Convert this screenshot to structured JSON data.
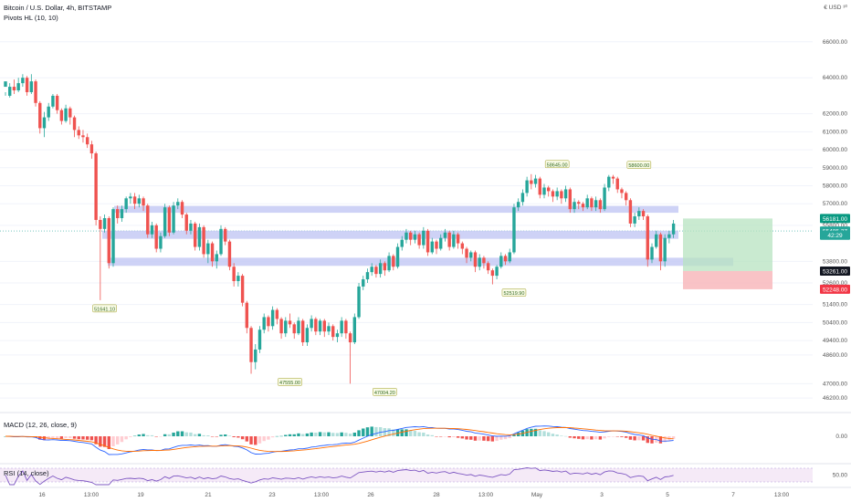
{
  "header": {
    "title": "Bitcoin / U.S. Dollar, 4h, BITSTAMP",
    "indicator": "Pivots HL (10, 10)",
    "currency": "€ USD ³⁰"
  },
  "indicators": {
    "macd_label": "MACD (12, 26, close, 9)",
    "rsi_label": "RSI (14, close)"
  },
  "chart_data": {
    "type": "candlestick",
    "title": "Bitcoin / U.S. Dollar, 4h, BITSTAMP",
    "y_ticks": [
      66000,
      64000,
      62000,
      61000,
      60000,
      59000,
      58000,
      57000,
      55800,
      53800,
      52600,
      51400,
      50400,
      49400,
      48600,
      47000,
      46200
    ],
    "y_tick_labels": [
      "66000.00",
      "64000.00",
      "62000.00",
      "61000.00",
      "60000.00",
      "59000.00",
      "58000.00",
      "57000.00",
      "55800.00",
      "53800.00",
      "52600.00",
      "51400.00",
      "50400.00",
      "49400.00",
      "48600.00",
      "47000.00",
      "46200.00"
    ],
    "y_range": [
      45600,
      66800
    ],
    "x_labels": [
      "16",
      "13:00",
      "19",
      "21",
      "23",
      "13:00",
      "26",
      "28",
      "13:00",
      "May",
      "3",
      "5",
      "7",
      "13:00"
    ],
    "price_tags": [
      {
        "label": "56181.00",
        "value": 56181,
        "color": "#089981"
      },
      {
        "label": "55485.37",
        "value": 55485,
        "color": "#26a69a"
      },
      {
        "label": "42:29",
        "value": 55250,
        "color": "#26a69a"
      },
      {
        "label": "53261.00",
        "value": 53261,
        "color": "#131722"
      },
      {
        "label": "52248.00",
        "value": 52248,
        "color": "#f23645"
      }
    ],
    "pivots": [
      {
        "label": "51641.10",
        "index": 23,
        "value": 51641,
        "side": "low"
      },
      {
        "label": "47555.00",
        "index": 66,
        "value": 47555,
        "side": "low"
      },
      {
        "label": "47004.20",
        "index": 88,
        "value": 47004,
        "side": "low"
      },
      {
        "label": "52519.90",
        "index": 118,
        "value": 52520,
        "side": "low"
      },
      {
        "label": "58645.00",
        "index": 128,
        "value": 58645,
        "side": "high"
      },
      {
        "label": "58600.00",
        "index": 147,
        "value": 58600,
        "side": "high"
      }
    ],
    "zones": [
      {
        "name": "upper",
        "from": 56880,
        "to": 56500
      },
      {
        "name": "middle",
        "from": 55500,
        "to": 55050
      },
      {
        "name": "lower",
        "from": 54000,
        "to": 53550
      }
    ],
    "position": {
      "entry": 53261,
      "target": 56181,
      "stop": 52248
    },
    "current_price": 55485.37,
    "macd_tick": "0.00",
    "rsi_tick": "50.00",
    "series": [
      {
        "name": "candles",
        "values": [
          [
            63500,
            63800,
            63200,
            63000
          ],
          [
            63000,
            63500,
            63700,
            62900
          ],
          [
            63500,
            63300,
            63900,
            63100
          ],
          [
            63300,
            63700,
            64000,
            63200
          ],
          [
            63700,
            64000,
            64200,
            63500
          ],
          [
            64000,
            63200,
            64100,
            63000
          ],
          [
            63200,
            63800,
            64200,
            63100
          ],
          [
            63800,
            62600,
            63900,
            62400
          ],
          [
            62600,
            61200,
            62700,
            60900
          ],
          [
            61200,
            61800,
            62100,
            60700
          ],
          [
            61800,
            62400,
            62600,
            61600
          ],
          [
            62400,
            63000,
            63100,
            62300
          ],
          [
            63000,
            62200,
            63100,
            62000
          ],
          [
            62200,
            61600,
            62300,
            61400
          ],
          [
            61600,
            62300,
            62500,
            61500
          ],
          [
            62300,
            61800,
            62400,
            61400
          ],
          [
            61800,
            61100,
            61900,
            60700
          ],
          [
            61100,
            60800,
            61300,
            60600
          ],
          [
            60800,
            60700,
            61100,
            60400
          ],
          [
            60700,
            60300,
            60900,
            60100
          ],
          [
            60300,
            59800,
            60500,
            59500
          ],
          [
            59800,
            56100,
            59900,
            55800
          ],
          [
            56100,
            55600,
            56300,
            51641
          ],
          [
            55600,
            56200,
            56400,
            55400
          ],
          [
            56200,
            53700,
            56300,
            53400
          ],
          [
            53700,
            56700,
            56800,
            53500
          ],
          [
            56700,
            56200,
            56900,
            55900
          ],
          [
            56200,
            56700,
            56900,
            56000
          ],
          [
            56700,
            57300,
            57400,
            56500
          ],
          [
            57300,
            57400,
            57600,
            57000
          ],
          [
            57400,
            57000,
            57600,
            56700
          ],
          [
            57000,
            57300,
            57500,
            56800
          ],
          [
            57300,
            56900,
            57400,
            56600
          ],
          [
            56900,
            55300,
            57000,
            55100
          ],
          [
            55300,
            55800,
            56000,
            55100
          ],
          [
            55800,
            54500,
            55900,
            54300
          ],
          [
            54500,
            55200,
            55400,
            54300
          ],
          [
            55200,
            56800,
            57000,
            55100
          ],
          [
            56800,
            55400,
            56900,
            55200
          ],
          [
            55400,
            56900,
            57100,
            55300
          ],
          [
            56900,
            57100,
            57300,
            56700
          ],
          [
            57100,
            56400,
            57200,
            56200
          ],
          [
            56400,
            55500,
            56500,
            55300
          ],
          [
            55500,
            55900,
            56100,
            55300
          ],
          [
            55900,
            54600,
            56000,
            54400
          ],
          [
            54600,
            55700,
            55900,
            54400
          ],
          [
            55700,
            54200,
            55800,
            54000
          ],
          [
            54200,
            54800,
            55000,
            53700
          ],
          [
            54800,
            53800,
            54900,
            53500
          ],
          [
            53800,
            54200,
            54400,
            53400
          ],
          [
            54200,
            55600,
            55800,
            54100
          ],
          [
            55600,
            54900,
            55700,
            54700
          ],
          [
            54900,
            53500,
            55000,
            53300
          ],
          [
            53500,
            52700,
            53700,
            52400
          ],
          [
            52700,
            53000,
            53200,
            52400
          ],
          [
            53000,
            51500,
            53100,
            51300
          ],
          [
            51500,
            50100,
            51600,
            49800
          ],
          [
            50100,
            48200,
            50200,
            47555
          ],
          [
            48200,
            48900,
            49200,
            47800
          ],
          [
            48900,
            50000,
            50200,
            48700
          ],
          [
            50000,
            50700,
            50900,
            49800
          ],
          [
            50700,
            50200,
            50800,
            49900
          ],
          [
            50200,
            51100,
            51300,
            50000
          ],
          [
            51100,
            50600,
            51200,
            50300
          ],
          [
            50600,
            49800,
            50700,
            49500
          ],
          [
            49800,
            50500,
            50700,
            49600
          ],
          [
            50500,
            50300,
            50900,
            50100
          ],
          [
            50300,
            49800,
            50400,
            49500
          ],
          [
            49800,
            50500,
            50700,
            49700
          ],
          [
            50500,
            49300,
            50600,
            49100
          ],
          [
            49300,
            50100,
            50300,
            49100
          ],
          [
            50100,
            50600,
            50800,
            49900
          ],
          [
            50600,
            49900,
            50700,
            49700
          ],
          [
            49900,
            50500,
            50600,
            49700
          ],
          [
            50500,
            49900,
            50600,
            49600
          ],
          [
            49900,
            50200,
            50400,
            49700
          ],
          [
            50200,
            49600,
            50300,
            49400
          ],
          [
            49600,
            49800,
            50000,
            49300
          ],
          [
            49800,
            50500,
            50700,
            49600
          ],
          [
            50500,
            49800,
            50600,
            49500
          ],
          [
            49800,
            49300,
            49900,
            47004
          ],
          [
            49300,
            50700,
            50900,
            49200
          ],
          [
            50700,
            52400,
            52600,
            50600
          ],
          [
            52400,
            52800,
            53000,
            52200
          ],
          [
            52800,
            53200,
            53400,
            52600
          ],
          [
            53200,
            53500,
            53700,
            53000
          ],
          [
            53500,
            53100,
            53600,
            52900
          ],
          [
            53100,
            53700,
            53900,
            52900
          ],
          [
            53700,
            53300,
            53800,
            53000
          ],
          [
            53300,
            54100,
            54300,
            53200
          ],
          [
            54100,
            53500,
            54200,
            53300
          ],
          [
            53500,
            54600,
            54800,
            53400
          ],
          [
            54600,
            55000,
            55200,
            54400
          ],
          [
            55000,
            55400,
            55600,
            54800
          ],
          [
            55400,
            55000,
            55500,
            54700
          ],
          [
            55000,
            55300,
            55500,
            54800
          ],
          [
            55300,
            54700,
            55400,
            54500
          ],
          [
            54700,
            55500,
            55700,
            54500
          ],
          [
            55500,
            54300,
            55600,
            54100
          ],
          [
            54300,
            54900,
            55100,
            54200
          ],
          [
            54900,
            54500,
            55000,
            54200
          ],
          [
            54500,
            55100,
            55300,
            54400
          ],
          [
            55100,
            55400,
            55600,
            54900
          ],
          [
            55400,
            54600,
            55500,
            54400
          ],
          [
            54600,
            55300,
            55500,
            54500
          ],
          [
            55300,
            54800,
            55400,
            54500
          ],
          [
            54800,
            54500,
            54900,
            54200
          ],
          [
            54500,
            54000,
            54600,
            53700
          ],
          [
            54000,
            54300,
            54400,
            53800
          ],
          [
            54300,
            53500,
            54400,
            53200
          ],
          [
            53500,
            54000,
            54200,
            53300
          ],
          [
            54000,
            53700,
            54100,
            53400
          ],
          [
            53700,
            53300,
            53800,
            53100
          ],
          [
            53300,
            53000,
            53400,
            52520
          ],
          [
            53000,
            53500,
            53600,
            52800
          ],
          [
            53500,
            54100,
            54300,
            53400
          ],
          [
            54100,
            53800,
            54200,
            53600
          ],
          [
            53800,
            54300,
            54500,
            53700
          ],
          [
            54300,
            56800,
            57000,
            54200
          ],
          [
            56800,
            57100,
            57300,
            56600
          ],
          [
            57100,
            57600,
            57800,
            56900
          ],
          [
            57600,
            58300,
            58500,
            57400
          ],
          [
            58300,
            58100,
            58645,
            57800
          ],
          [
            58100,
            58400,
            58600,
            57900
          ],
          [
            58400,
            57500,
            58500,
            57300
          ],
          [
            57500,
            57900,
            58100,
            57300
          ],
          [
            57900,
            57700,
            58000,
            57400
          ],
          [
            57700,
            57400,
            57800,
            57100
          ],
          [
            57400,
            57700,
            57900,
            57200
          ],
          [
            57700,
            57300,
            57800,
            57000
          ],
          [
            57300,
            57800,
            58000,
            57100
          ],
          [
            57800,
            56700,
            57900,
            56500
          ],
          [
            56700,
            57100,
            57300,
            56500
          ],
          [
            57100,
            57000,
            57200,
            56700
          ],
          [
            57000,
            56800,
            57100,
            56600
          ],
          [
            56800,
            57300,
            57500,
            56700
          ],
          [
            57300,
            56800,
            57400,
            56600
          ],
          [
            56800,
            57200,
            57400,
            56600
          ],
          [
            57200,
            56700,
            57300,
            56500
          ],
          [
            56700,
            57900,
            58100,
            56600
          ],
          [
            57900,
            58500,
            58600,
            57700
          ],
          [
            58500,
            58400,
            58600,
            58100
          ],
          [
            58400,
            57800,
            58500,
            57600
          ],
          [
            57800,
            57600,
            57900,
            57300
          ],
          [
            57600,
            57200,
            57700,
            56900
          ],
          [
            57200,
            55900,
            57300,
            55700
          ],
          [
            55900,
            56300,
            56500,
            55700
          ],
          [
            56300,
            56600,
            56800,
            56100
          ],
          [
            56600,
            56300,
            56700,
            56100
          ],
          [
            56300,
            53900,
            56400,
            53500
          ],
          [
            53900,
            54600,
            54800,
            53700
          ],
          [
            54600,
            55300,
            55500,
            54500
          ],
          [
            55300,
            53800,
            55400,
            53300
          ],
          [
            53800,
            55100,
            55300,
            53500
          ],
          [
            55100,
            55300,
            55500,
            54800
          ],
          [
            55300,
            55900,
            56100,
            55100
          ]
        ]
      }
    ]
  }
}
